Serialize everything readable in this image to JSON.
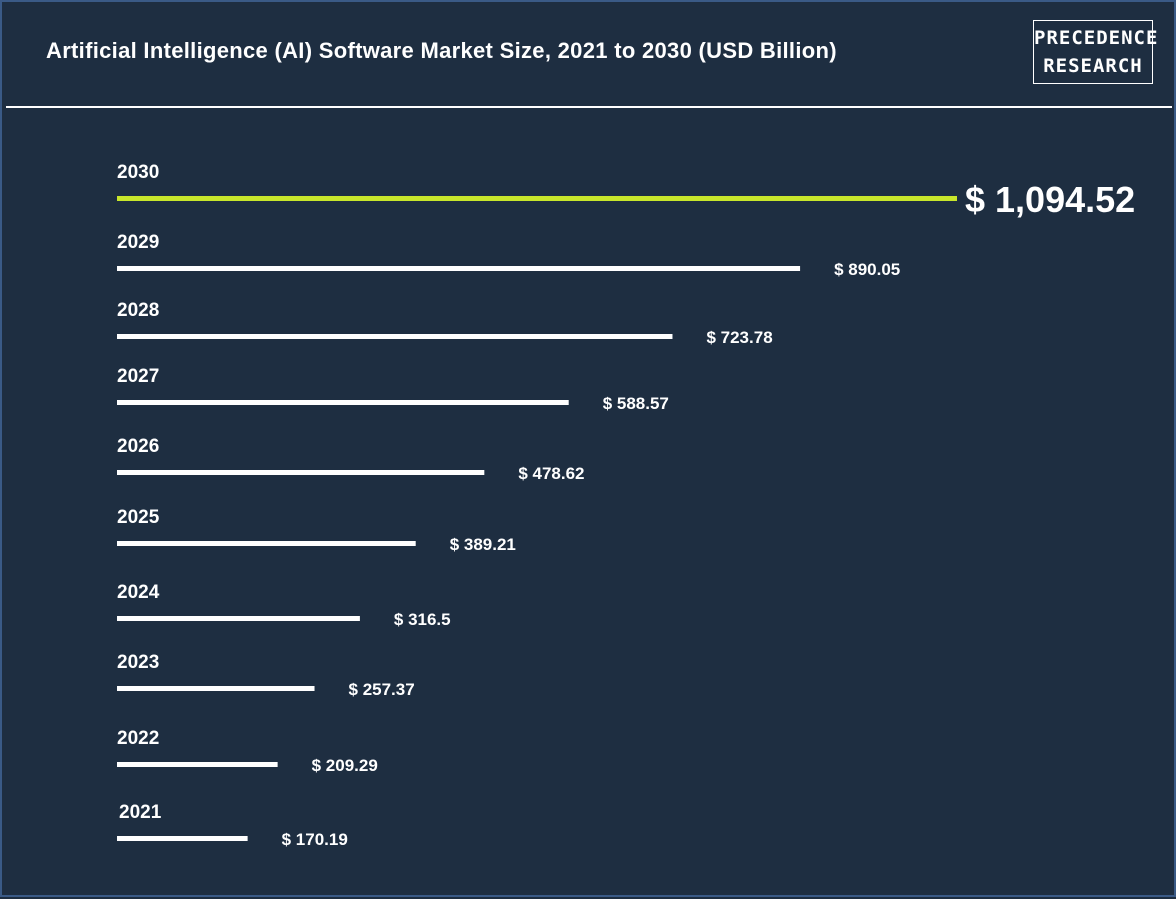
{
  "header": {
    "title": "Artificial Intelligence (AI) Software Market Size, 2021 to 2030 (USD Billion)",
    "logo_line1": "PRECEDENCE",
    "logo_line2": "RESEARCH"
  },
  "colors": {
    "background": "#1e2e41",
    "bar": "#ffffff",
    "highlight_bar": "#c8e62b",
    "text": "#ffffff"
  },
  "chart_data": {
    "type": "bar",
    "orientation": "horizontal",
    "title": "Artificial Intelligence (AI) Software Market Size, 2021 to 2030 (USD Billion)",
    "categories": [
      "2030",
      "2029",
      "2028",
      "2027",
      "2026",
      "2025",
      "2024",
      "2023",
      "2022",
      "2021"
    ],
    "values": [
      1094.52,
      890.05,
      723.78,
      588.57,
      478.62,
      389.21,
      316.5,
      257.37,
      209.29,
      170.19
    ],
    "value_labels": [
      "$ 1,094.52",
      "$ 890.05",
      "$ 723.78",
      "$ 588.57",
      "$ 478.62",
      "$ 389.21",
      "$ 316.5",
      "$ 257.37",
      "$ 209.29",
      "$ 170.19"
    ],
    "highlight_category": "2030",
    "xlabel": "",
    "ylabel": "",
    "grid": false
  }
}
